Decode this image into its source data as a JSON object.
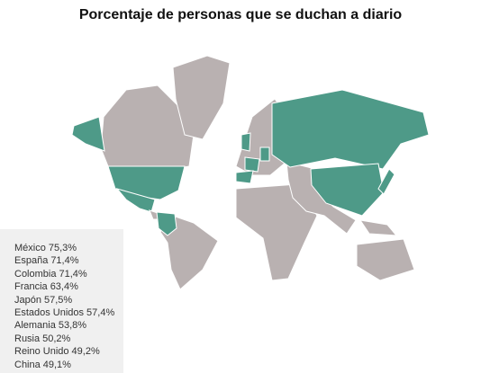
{
  "title": "Porcentaje de personas que se duchan a diario",
  "legend": {
    "items": [
      {
        "name": "México",
        "value": "75,3%"
      },
      {
        "name": "España",
        "value": "71,4%"
      },
      {
        "name": "Colombia",
        "value": "71,4%"
      },
      {
        "name": "Francia",
        "value": "63,4%"
      },
      {
        "name": "Japón",
        "value": "57,5%"
      },
      {
        "name": "Estados Unidos",
        "value": "57,4%"
      },
      {
        "name": "Alemania",
        "value": "53,8%"
      },
      {
        "name": "Rusia",
        "value": "50,2%"
      },
      {
        "name": "Reino Unido",
        "value": "49,2%"
      },
      {
        "name": "China",
        "value": "49,1%"
      }
    ]
  }
}
